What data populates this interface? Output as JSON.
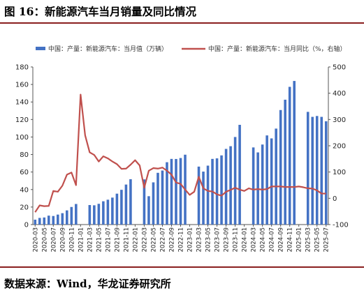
{
  "figure": {
    "title": "图 16：新能源汽车当月销量及同比情况",
    "source": "数据来源：Wind，华龙证券研究所"
  },
  "chart_data": {
    "type": "bar",
    "title": "",
    "colors": {
      "bar": "#4472C4",
      "line": "#C0504D"
    },
    "legend": {
      "placement": "top"
    },
    "grid": false,
    "x": [
      "2020-03",
      "2020-04",
      "2020-05",
      "2020-06",
      "2020-07",
      "2020-08",
      "2020-09",
      "2020-10",
      "2020-11",
      "2020-12",
      "2021-01",
      "2021-02",
      "2021-03",
      "2021-04",
      "2021-05",
      "2021-06",
      "2021-07",
      "2021-08",
      "2021-09",
      "2021-10",
      "2021-11",
      "2021-12",
      "2022-01",
      "2022-02",
      "2022-03",
      "2022-04",
      "2022-05",
      "2022-06",
      "2022-07",
      "2022-08",
      "2022-09",
      "2022-10",
      "2022-11",
      "2022-12",
      "2023-01",
      "2023-02",
      "2023-03",
      "2023-04",
      "2023-05",
      "2023-06",
      "2023-07",
      "2023-08",
      "2023-09",
      "2023-10",
      "2023-11",
      "2023-12",
      "2024-01",
      "2024-02",
      "2024-03",
      "2024-04",
      "2024-05",
      "2024-06",
      "2024-07",
      "2024-08",
      "2024-09",
      "2024-10",
      "2024-11",
      "2024-12",
      "2025-01",
      "2025-02",
      "2025-03",
      "2025-04",
      "2025-05",
      "2025-06",
      "2025-07"
    ],
    "tick_labels": [
      "2020-03",
      "2020-05",
      "2020-07",
      "2020-09",
      "2020-11",
      "2021-01",
      "2021-03",
      "2021-05",
      "2021-07",
      "2021-09",
      "2021-11",
      "2022-01",
      "2022-03",
      "2022-05",
      "2022-07",
      "2022-09",
      "2022-11",
      "2023-01",
      "2023-03",
      "2023-05",
      "2023-07",
      "2023-09",
      "2023-11",
      "2024-01",
      "2024-03",
      "2024-05",
      "2024-07",
      "2024-09",
      "2024-11",
      "2025-01",
      "2025-03",
      "2025-05",
      "2025-07"
    ],
    "y_left": {
      "ylim": [
        0,
        180
      ],
      "ticks": [
        0,
        20,
        40,
        60,
        80,
        100,
        120,
        140,
        160,
        180
      ]
    },
    "y_right": {
      "ylim": [
        -100,
        500
      ],
      "ticks": [
        -100,
        0,
        100,
        200,
        300,
        400,
        500
      ]
    },
    "series": [
      {
        "name": "中国：产量：新能源汽车：当月值（万辆）",
        "type": "bar",
        "axis": "left",
        "values": [
          5.6,
          7.6,
          8.1,
          10.2,
          9.8,
          11.4,
          13.0,
          16.2,
          20.1,
          23.5,
          null,
          null,
          22.3,
          22.0,
          23.7,
          26.6,
          28.4,
          30.8,
          35.3,
          39.7,
          45.7,
          51.8,
          null,
          null,
          51.6,
          32.4,
          48.2,
          59.1,
          61.7,
          71.2,
          75.0,
          74.9,
          76.0,
          79.8,
          null,
          null,
          66.2,
          60.5,
          67.3,
          75.0,
          75.6,
          79.0,
          86.4,
          89.5,
          100.0,
          113.9,
          null,
          null,
          88.1,
          82.4,
          91.4,
          101.8,
          98.4,
          109.6,
          130.8,
          142.6,
          157.3,
          164.0,
          null,
          null,
          128.7,
          123.0,
          124.0,
          123.0,
          118.0
        ]
      },
      {
        "name": "中国：产量：新能源汽车：当月同比（%，右轴）",
        "type": "line",
        "axis": "right",
        "values": [
          -53,
          -27,
          -30,
          -29,
          28,
          25,
          48,
          90,
          98,
          50,
          395,
          240,
          175,
          165,
          140,
          160,
          152,
          140,
          130,
          112,
          113,
          128,
          145,
          125,
          40,
          105,
          115,
          113,
          117,
          105,
          90,
          60,
          55,
          33,
          13,
          25,
          82,
          38,
          28,
          26,
          15,
          10,
          25,
          32,
          40,
          33,
          28,
          38,
          33,
          35,
          33,
          35,
          45,
          45,
          45,
          43,
          43,
          43,
          45,
          42,
          38,
          37,
          30,
          18,
          18
        ]
      }
    ]
  }
}
